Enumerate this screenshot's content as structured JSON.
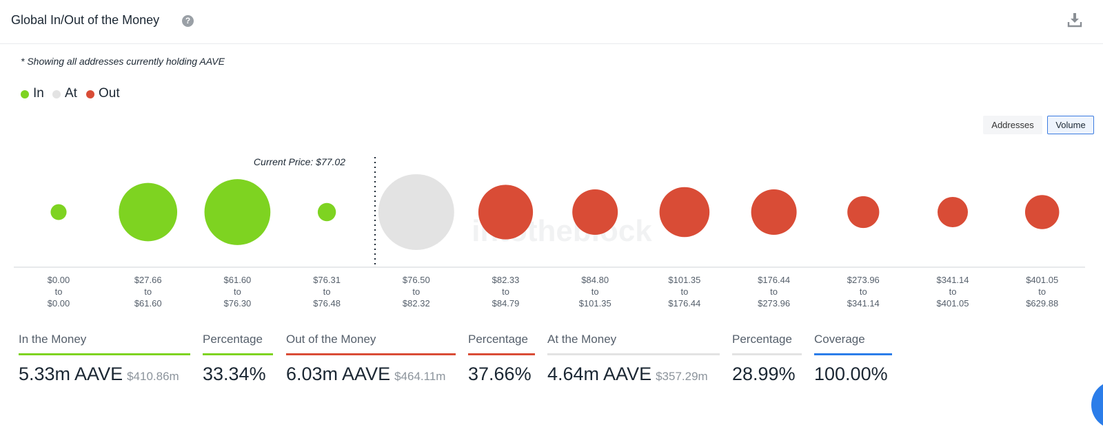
{
  "header": {
    "title": "Global In/Out of the Money",
    "help_icon": "question-circle-icon",
    "download_icon": "download-icon"
  },
  "note": "* Showing all addresses currently holding AAVE",
  "legend": [
    {
      "label": "In",
      "color": "#7ed321"
    },
    {
      "label": "At",
      "color": "#e3e3e3"
    },
    {
      "label": "Out",
      "color": "#d94c36"
    }
  ],
  "toggle": {
    "options": [
      "Addresses",
      "Volume"
    ],
    "selected": "Volume"
  },
  "chart_data": {
    "type": "scatter",
    "title": "",
    "xlabel": "",
    "ylabel": "",
    "annotation": "Current Price: $77.02",
    "watermark": "intotheblock",
    "colors": {
      "In": "#7ed321",
      "At": "#e3e3e3",
      "Out": "#d94c36"
    },
    "categories": [
      {
        "from": "$0.00",
        "to": "$0.00",
        "status": "In",
        "relative_size": 0.21
      },
      {
        "from": "$27.66",
        "to": "$61.60",
        "status": "In",
        "relative_size": 0.77
      },
      {
        "from": "$61.60",
        "to": "$76.30",
        "status": "In",
        "relative_size": 0.87
      },
      {
        "from": "$76.31",
        "to": "$76.48",
        "status": "In",
        "relative_size": 0.24
      },
      {
        "from": "$76.50",
        "to": "$82.32",
        "status": "At",
        "relative_size": 1.0
      },
      {
        "from": "$82.33",
        "to": "$84.79",
        "status": "Out",
        "relative_size": 0.72
      },
      {
        "from": "$84.80",
        "to": "$101.35",
        "status": "Out",
        "relative_size": 0.6
      },
      {
        "from": "$101.35",
        "to": "$176.44",
        "status": "Out",
        "relative_size": 0.66
      },
      {
        "from": "$176.44",
        "to": "$273.96",
        "status": "Out",
        "relative_size": 0.6
      },
      {
        "from": "$273.96",
        "to": "$341.14",
        "status": "Out",
        "relative_size": 0.42
      },
      {
        "from": "$341.14",
        "to": "$401.05",
        "status": "Out",
        "relative_size": 0.4
      },
      {
        "from": "$401.05",
        "to": "$629.88",
        "status": "Out",
        "relative_size": 0.45
      }
    ],
    "to_word": "to"
  },
  "stats": [
    {
      "label": "In the Money",
      "value": "5.33m AAVE",
      "sub": "$410.86m",
      "color": "#7ed321"
    },
    {
      "label": "Percentage",
      "value": "33.34%",
      "sub": "",
      "color": "#7ed321"
    },
    {
      "label": "Out of the Money",
      "value": "6.03m AAVE",
      "sub": "$464.11m",
      "color": "#d94c36"
    },
    {
      "label": "Percentage",
      "value": "37.66%",
      "sub": "",
      "color": "#d94c36"
    },
    {
      "label": "At the Money",
      "value": "4.64m AAVE",
      "sub": "$357.29m",
      "color": "#e3e3e3"
    },
    {
      "label": "Percentage",
      "value": "28.99%",
      "sub": "",
      "color": "#e3e3e3"
    },
    {
      "label": "Coverage",
      "value": "100.00%",
      "sub": "",
      "color": "#2b7de9"
    }
  ]
}
